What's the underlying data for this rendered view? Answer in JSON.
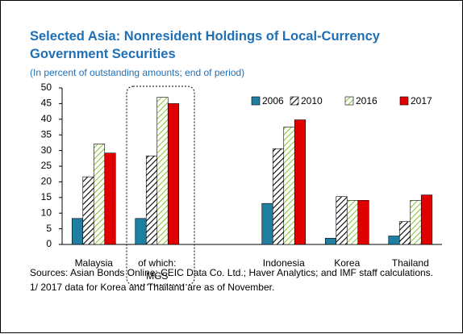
{
  "chart_data": {
    "type": "bar",
    "title": "Selected Asia: Nonresident Holdings of Local-Currency Government Securities",
    "subtitle": "(In percent of outstanding amounts; end of period)",
    "categories": [
      "Malaysia",
      "of which: MGS",
      null,
      "Indonesia",
      "Korea",
      "Thailand"
    ],
    "series": [
      {
        "name": "2006",
        "color": "#1f7fa0",
        "pattern": "solid",
        "values": [
          8.3,
          8.3,
          null,
          13.1,
          2.0,
          2.7
        ]
      },
      {
        "name": "2010",
        "color": "#000000",
        "pattern": "hatch",
        "values": [
          21.6,
          28.3,
          null,
          30.6,
          15.3,
          7.3
        ]
      },
      {
        "name": "2016",
        "color": "#8cc63f",
        "pattern": "hatch",
        "values": [
          32.1,
          47.0,
          null,
          37.5,
          14.1,
          14.1
        ]
      },
      {
        "name": "2017",
        "color": "#e00000",
        "pattern": "solid",
        "values": [
          29.2,
          45.0,
          null,
          39.8,
          14.1,
          15.8
        ]
      }
    ],
    "ylim": [
      0,
      50
    ],
    "yticks": [
      0,
      5,
      10,
      15,
      20,
      25,
      30,
      35,
      40,
      45,
      50
    ],
    "legend": "upper right",
    "notes": [
      "Sources: Asian Bonds Online; CEIC Data Co. Ltd.; Haver Analytics; and IMF staff calculations.",
      "1/ 2017 data for Korea and Thailand are as of November."
    ]
  }
}
